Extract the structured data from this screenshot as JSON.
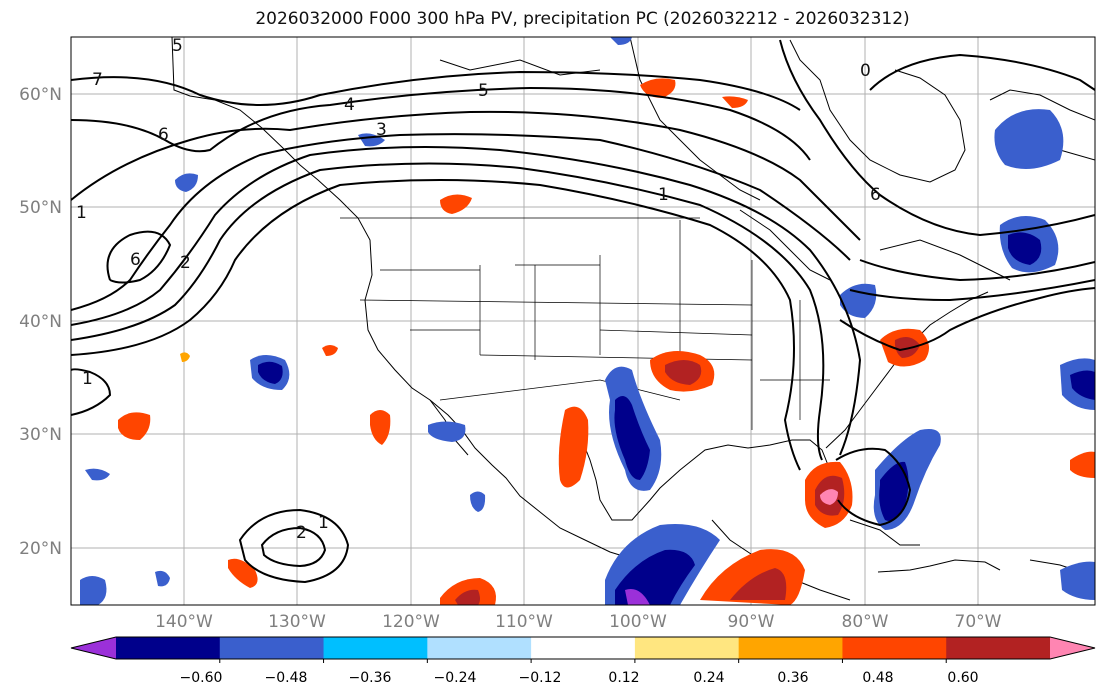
{
  "title": "2026032000 F000 300 hPa PV, precipitation PC (2026032212 - 2026032312)",
  "lat_labels": [
    "60°N",
    "50°N",
    "40°N",
    "30°N",
    "20°N"
  ],
  "lon_labels": [
    "140°W",
    "130°W",
    "120°W",
    "110°W",
    "100°W",
    "90°W",
    "80°W",
    "70°W"
  ],
  "colorbar": {
    "labels": [
      "−0.60",
      "−0.48",
      "−0.36",
      "−0.24",
      "−0.12",
      "0.12",
      "0.24",
      "0.36",
      "0.48",
      "0.60"
    ],
    "colors": [
      "#9b30d9",
      "#00008b",
      "#3a5fcd",
      "#00bfff",
      "#b0e0ff",
      "#ffffff",
      "#ffe680",
      "#ffa500",
      "#ff4500",
      "#b22222",
      "#ff85b2"
    ]
  },
  "contour_labels": [
    "5",
    "7",
    "6",
    "4",
    "3",
    "5",
    "6",
    "2",
    "1",
    "1",
    "6",
    "0",
    "1",
    "2",
    "1"
  ]
}
